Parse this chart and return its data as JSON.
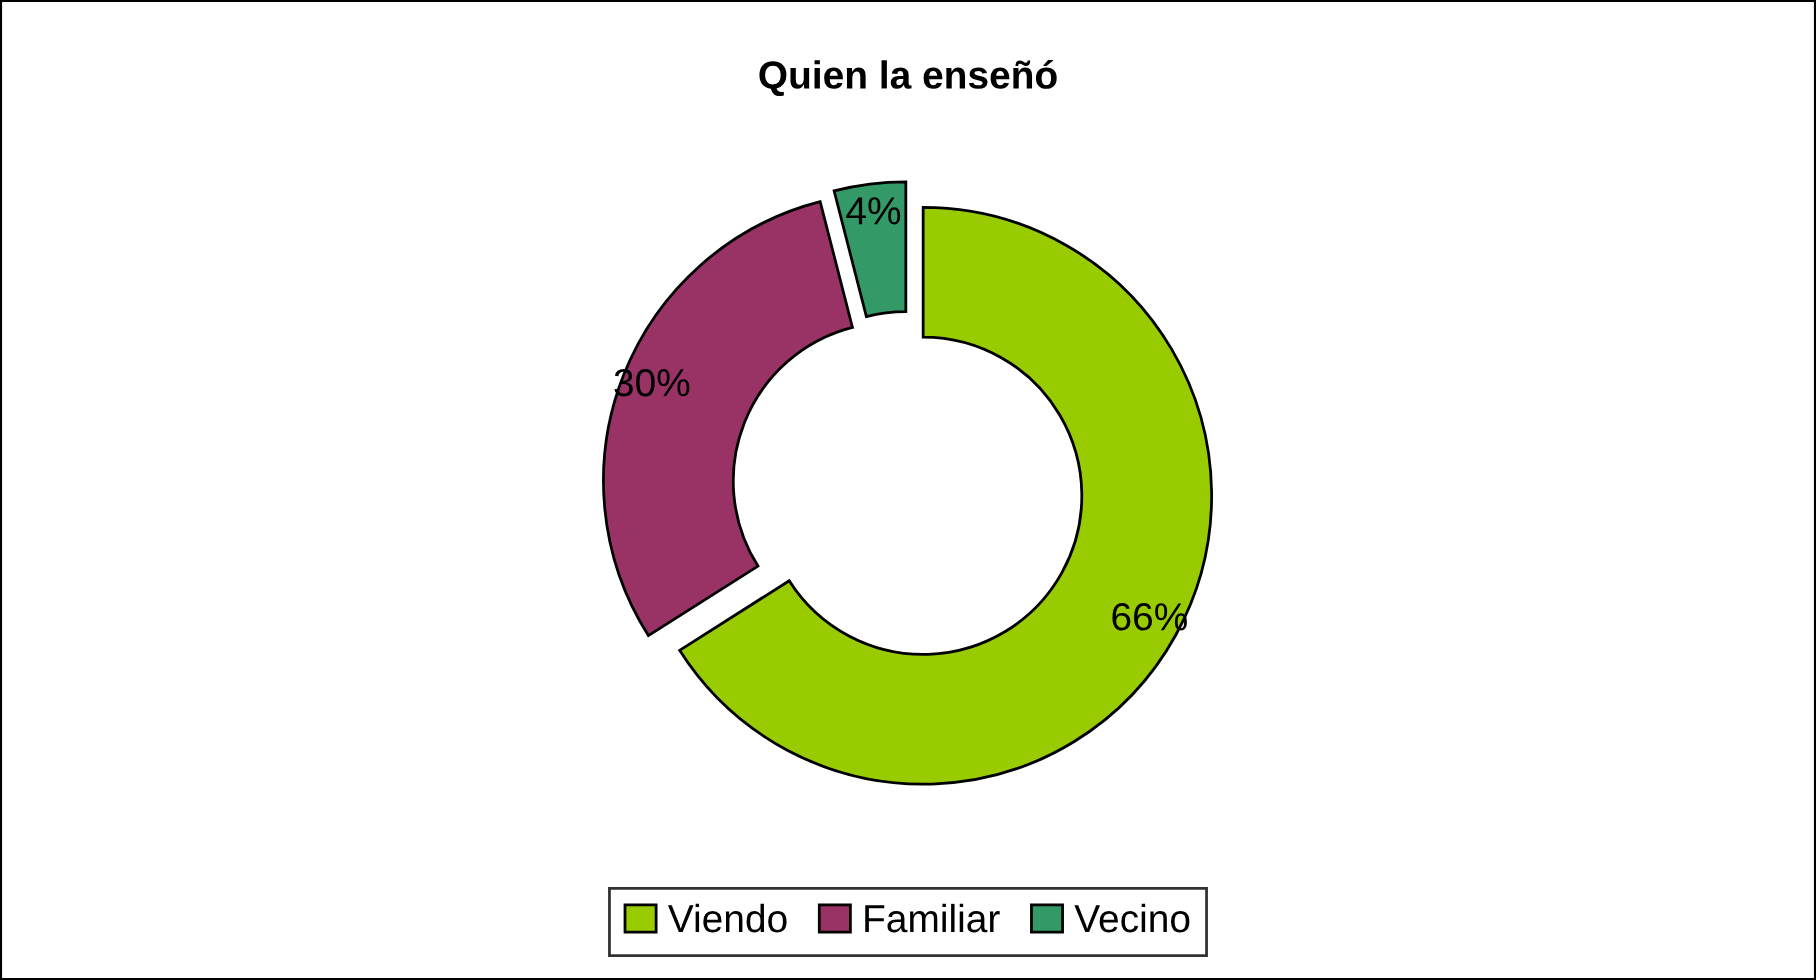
{
  "chart_data": {
    "type": "donut",
    "title": "Quien la enseñó",
    "categories": [
      "Viendo",
      "Familiar",
      "Vecino"
    ],
    "values": [
      66,
      30,
      4
    ],
    "colors": [
      "#99cc00",
      "#993366",
      "#339966"
    ],
    "value_labels": [
      "66%",
      "30%",
      "4%"
    ],
    "legend": "bottom"
  }
}
